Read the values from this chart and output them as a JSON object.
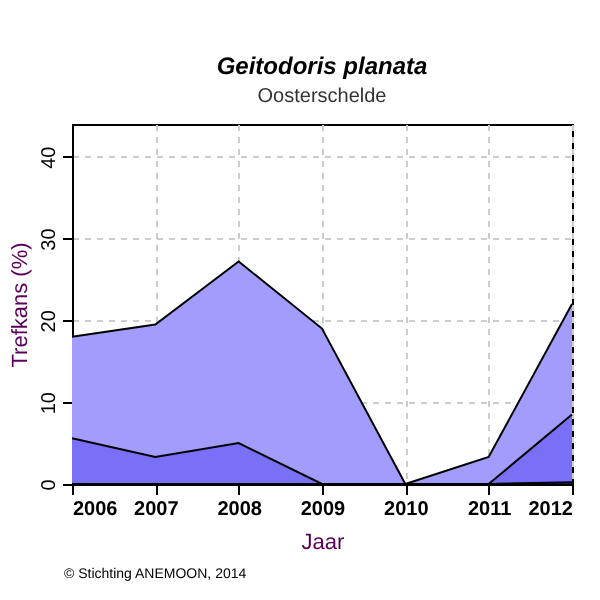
{
  "chart_data": {
    "type": "area",
    "title": "Geitodoris planata",
    "subtitle": "Oosterschelde",
    "xlabel": "Jaar",
    "ylabel": "Trefkans (%)",
    "x": [
      2006,
      2007,
      2008,
      2009,
      2010,
      2011,
      2012
    ],
    "series": [
      {
        "color": "#a29dfc",
        "values": [
          18,
          19.5,
          27.2,
          19,
          0,
          3.3,
          22
        ]
      },
      {
        "color": "#7a70f8",
        "values": [
          5.6,
          3.3,
          5,
          0,
          0,
          0,
          8.5
        ]
      },
      {
        "color": "#1c1c70",
        "values": [
          0,
          0,
          0,
          0,
          0,
          0,
          0.2
        ]
      }
    ],
    "xlim": [
      2006,
      2012
    ],
    "xticks": [
      2006,
      2007,
      2008,
      2009,
      2010,
      2011,
      2012
    ],
    "ylim": [
      0,
      44
    ],
    "yticks": [
      0,
      10,
      20,
      30,
      40
    ],
    "grid": true,
    "annotations": [
      "© Stichting ANEMOON, 2014"
    ]
  }
}
